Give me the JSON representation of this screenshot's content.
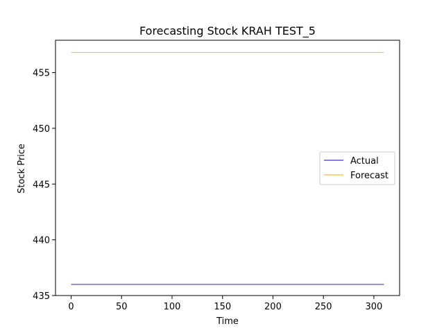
{
  "chart_data": {
    "type": "line",
    "title": "Forecasting Stock KRAH TEST_5",
    "xlabel": "Time",
    "ylabel": "Stock Price",
    "xlim": [
      -15.5,
      325.5
    ],
    "ylim": [
      435,
      457.9
    ],
    "xticks": [
      0,
      50,
      100,
      150,
      200,
      250,
      300
    ],
    "yticks": [
      435,
      440,
      445,
      450,
      455
    ],
    "legend_position": "center-right",
    "grid": false,
    "series": [
      {
        "name": "Actual",
        "color": "#0000cc",
        "x": [
          0,
          310
        ],
        "values": [
          436.0,
          436.0
        ]
      },
      {
        "name": "Forecast",
        "color": "#ffa500",
        "x": [
          0,
          310
        ],
        "values": [
          456.8,
          456.8
        ]
      }
    ]
  }
}
